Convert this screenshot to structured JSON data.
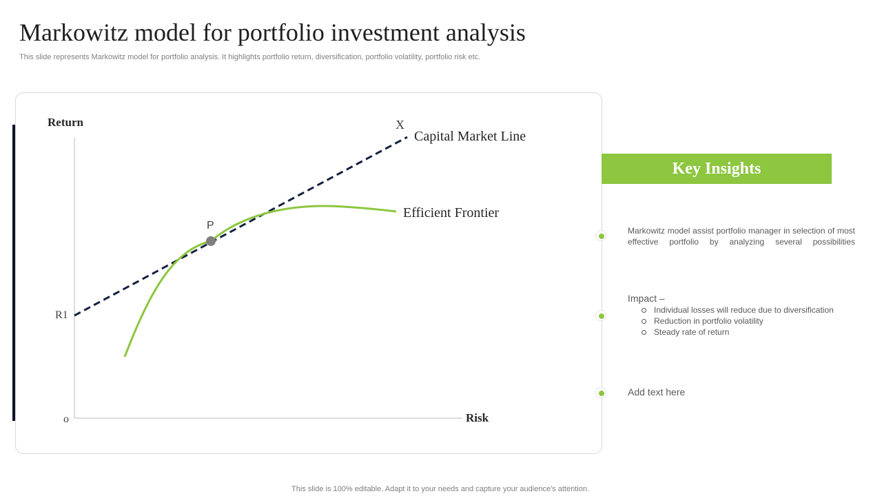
{
  "slide": {
    "title": "Markowitz model for portfolio investment analysis",
    "subtitle": "This slide represents Markowitz model for portfolio analysis. It highlights portfolio return, diversification, portfolio volatility, portfolio risk etc.",
    "footer": "This slide is 100% editable. Adapt it to your needs and capture your audience's attention."
  },
  "diagram": {
    "y_axis_label": "Return",
    "x_axis_label": "Risk",
    "origin_label": "o",
    "r1_label": "R1",
    "point_p_label": "P",
    "point_x_label": "X",
    "cml_label": "Capital Market Line",
    "frontier_label": "Efficient Frontier",
    "colors": {
      "cml": "#13223f",
      "frontier": "#8dc63f",
      "point": "#7f7f7f",
      "axis": "#d0d0d0"
    }
  },
  "insights": {
    "heading": "Key Insights",
    "accent_color": "#8dc63f",
    "item1": "Markowitz model assist portfolio manager in selection of most effective portfolio by analyzing several possibilities",
    "impact_heading": "Impact –",
    "impact_points": [
      "Individual losses will reduce due to diversification",
      "Reduction in portfolio volatility",
      "Steady rate of return"
    ],
    "item3": "Add text here"
  }
}
